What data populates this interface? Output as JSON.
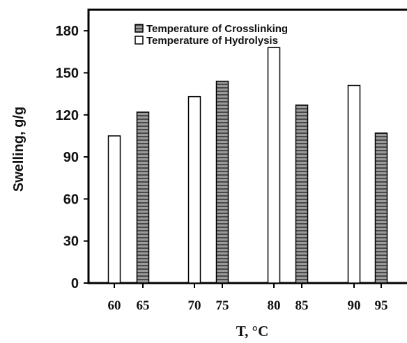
{
  "chart_data": {
    "type": "bar",
    "xlabel": "T, °C",
    "ylabel": "Swelling, g/g",
    "ylim": [
      0,
      195
    ],
    "yticks": [
      0,
      30,
      60,
      90,
      120,
      150,
      180
    ],
    "grid": false,
    "legend_position": "top-right",
    "series": [
      {
        "name": "Temperature of Crosslinking",
        "fill": "#8a8a8a",
        "pattern": "horizontal-stripes",
        "points": [
          {
            "x": "65",
            "y": 122
          },
          {
            "x": "75",
            "y": 144
          },
          {
            "x": "85",
            "y": 127
          },
          {
            "x": "95",
            "y": 107
          }
        ]
      },
      {
        "name": "Temperature of Hydrolysis",
        "fill": "#ffffff",
        "pattern": "none",
        "points": [
          {
            "x": "60",
            "y": 105
          },
          {
            "x": "70",
            "y": 133
          },
          {
            "x": "80",
            "y": 168
          },
          {
            "x": "90",
            "y": 141
          }
        ]
      }
    ],
    "categories": [
      "60",
      "65",
      "70",
      "75",
      "80",
      "85",
      "90",
      "95"
    ]
  }
}
